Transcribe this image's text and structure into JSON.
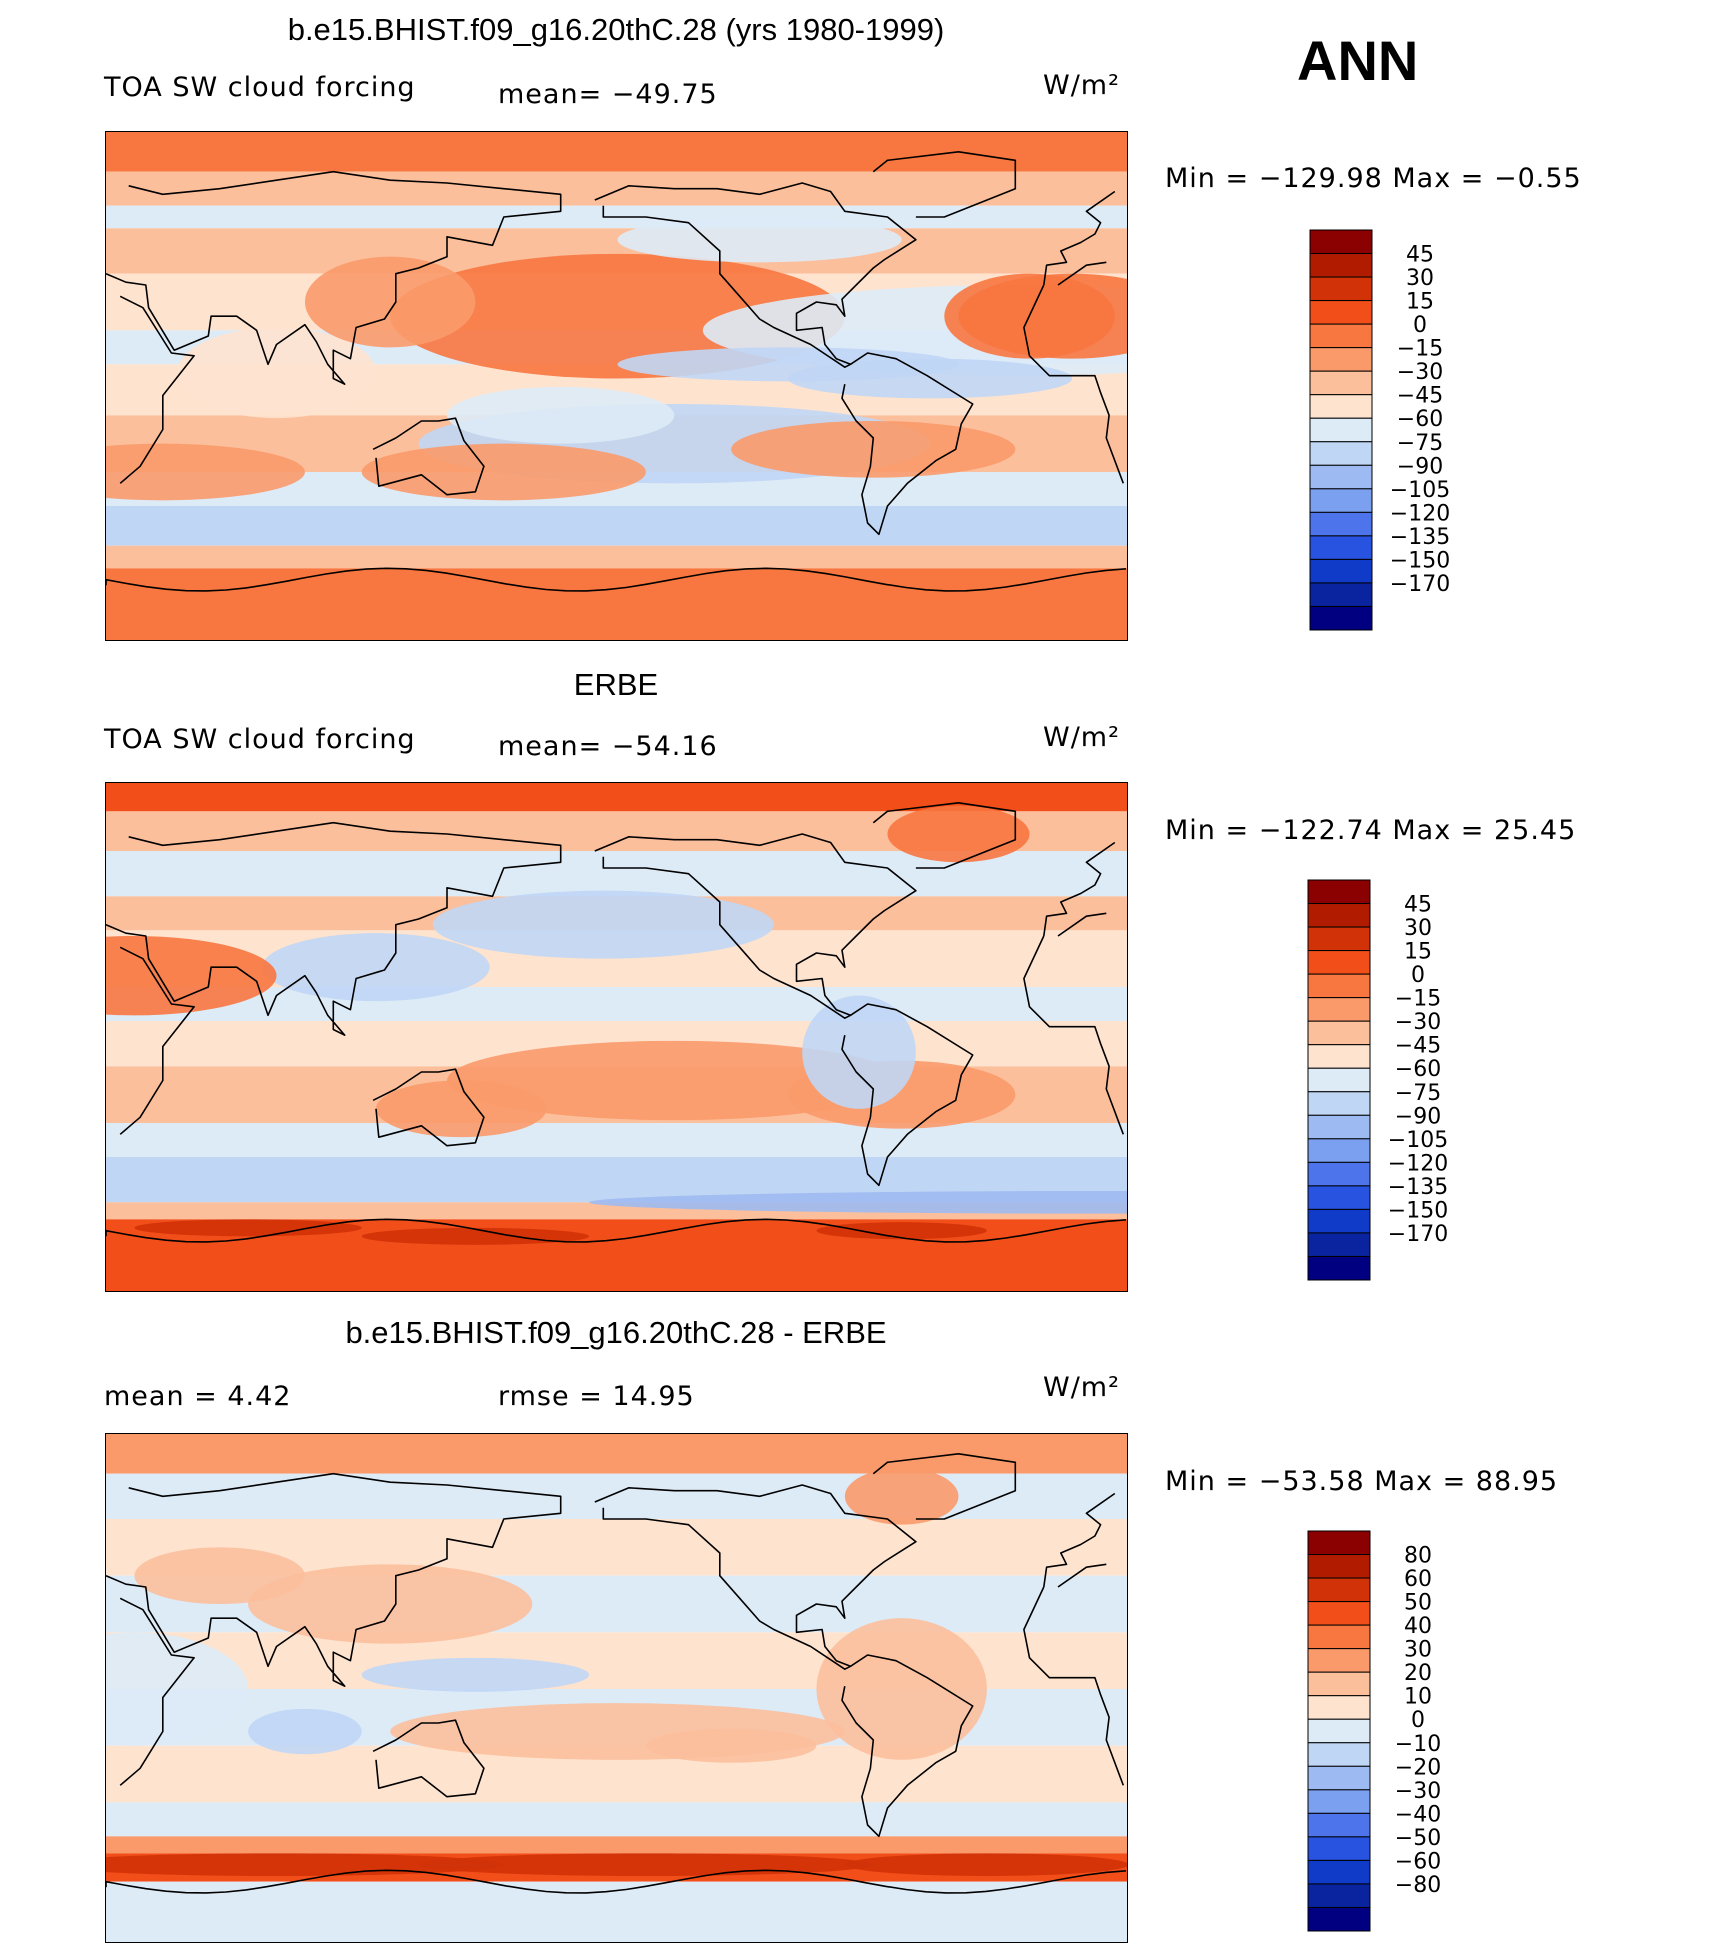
{
  "page": {
    "ann_label": "ANN"
  },
  "chart_data": [
    {
      "type": "heatmap",
      "title": "b.e15.BHIST.f09_g16.20thC.28 (yrs 1980-1999)",
      "variable": "TOA SW cloud forcing",
      "stat_left": "",
      "stat_mid": "mean= −49.75",
      "units": "W/m²",
      "minmax": "Min  =  −129.98  Max  =    −0.55",
      "colorbar_levels": [
        "45",
        "30",
        "15",
        "0",
        "−15",
        "−30",
        "−45",
        "−60",
        "−75",
        "−90",
        "−105",
        "−120",
        "−135",
        "−150",
        "−170"
      ],
      "colorbar_colors": [
        "#8b0000",
        "#b11c00",
        "#d23208",
        "#f24e1a",
        "#f8763f",
        "#fa9a6a",
        "#fcbf9c",
        "#fee3cf",
        "#ddebf7",
        "#c0d6f5",
        "#9dbaf2",
        "#7ca0f0",
        "#4d74ea",
        "#2852e0",
        "#103bc8",
        "#0a24a0",
        "#000080"
      ],
      "mean": -49.75,
      "min": -129.98,
      "max": -0.55
    },
    {
      "type": "heatmap",
      "title": "ERBE",
      "variable": "TOA SW cloud forcing",
      "stat_left": "",
      "stat_mid": "mean= −54.16",
      "units": "W/m²",
      "minmax": "Min  =  −122.74  Max  =    25.45",
      "colorbar_levels": [
        "45",
        "30",
        "15",
        "0",
        "−15",
        "−30",
        "−45",
        "−60",
        "−75",
        "−90",
        "−105",
        "−120",
        "−135",
        "−150",
        "−170"
      ],
      "colorbar_colors": [
        "#8b0000",
        "#b11c00",
        "#d23208",
        "#f24e1a",
        "#f8763f",
        "#fa9a6a",
        "#fcbf9c",
        "#fee3cf",
        "#ddebf7",
        "#c0d6f5",
        "#9dbaf2",
        "#7ca0f0",
        "#4d74ea",
        "#2852e0",
        "#103bc8",
        "#0a24a0",
        "#000080"
      ],
      "mean": -54.16,
      "min": -122.74,
      "max": 25.45
    },
    {
      "type": "heatmap",
      "title": "b.e15.BHIST.f09_g16.20thC.28 - ERBE",
      "variable": "",
      "stat_left": "mean  =     4.42",
      "stat_mid": "rmse  =    14.95",
      "units": "W/m²",
      "minmax": "Min  =  −53.58  Max  =    88.95",
      "colorbar_levels": [
        "80",
        "60",
        "50",
        "40",
        "30",
        "20",
        "10",
        "0",
        "−10",
        "−20",
        "−30",
        "−40",
        "−50",
        "−60",
        "−80"
      ],
      "colorbar_colors": [
        "#8b0000",
        "#b11c00",
        "#d23208",
        "#f24e1a",
        "#f8763f",
        "#fa9a6a",
        "#fcbf9c",
        "#fee3cf",
        "#ddebf7",
        "#c0d6f5",
        "#9dbaf2",
        "#7ca0f0",
        "#4d74ea",
        "#2852e0",
        "#103bc8",
        "#0a24a0",
        "#000080"
      ],
      "mean": 4.42,
      "rmse": 14.95,
      "min": -53.58,
      "max": 88.95
    }
  ]
}
